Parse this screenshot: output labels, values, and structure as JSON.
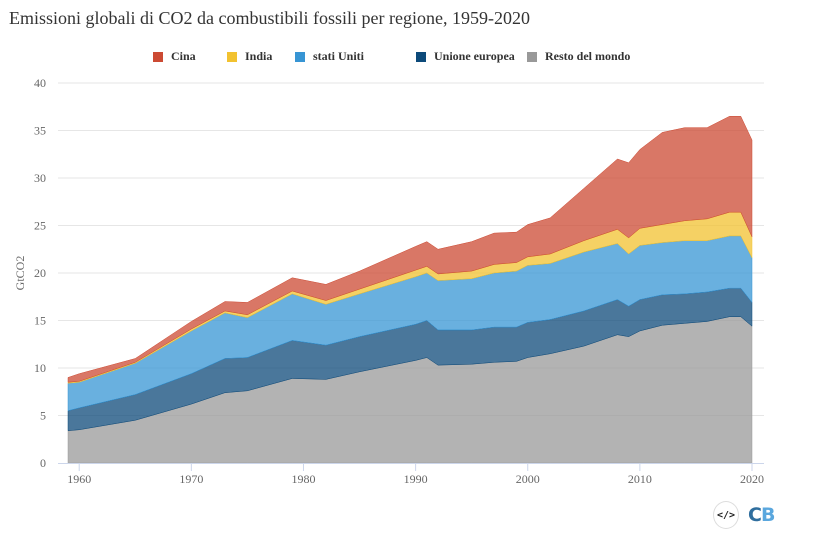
{
  "chart_data": {
    "type": "area",
    "stacked": true,
    "title": "Emissioni globali di CO2 da combustibili fossili per regione, 1959-2020",
    "xlabel": "",
    "ylabel": "GtCO2",
    "ylim": [
      0,
      40
    ],
    "yticks": [
      "0",
      "5",
      "10",
      "15",
      "20",
      "25",
      "30",
      "35",
      "40"
    ],
    "xticks": [
      "1960",
      "1970",
      "1980",
      "1990",
      "2000",
      "2010",
      "2020"
    ],
    "xlim": [
      1959,
      2020
    ],
    "grid": true,
    "legend": "top",
    "x": [
      1959,
      1960,
      1965,
      1970,
      1973,
      1975,
      1979,
      1982,
      1985,
      1990,
      1991,
      1992,
      1995,
      1997,
      1999,
      2000,
      2002,
      2005,
      2008,
      2009,
      2010,
      2012,
      2014,
      2016,
      2018,
      2019,
      2020
    ],
    "series": [
      {
        "name": "Resto del mondo",
        "color": "#999999",
        "values": [
          3.4,
          3.5,
          4.5,
          6.2,
          7.4,
          7.6,
          8.9,
          8.8,
          9.6,
          10.8,
          11.1,
          10.3,
          10.4,
          10.6,
          10.7,
          11.1,
          11.5,
          12.3,
          13.5,
          13.3,
          13.9,
          14.5,
          14.7,
          14.9,
          15.4,
          15.4,
          14.4
        ]
      },
      {
        "name": "Unione europea",
        "color": "#0d4a7a",
        "values": [
          2.1,
          2.3,
          2.7,
          3.2,
          3.6,
          3.5,
          4.0,
          3.6,
          3.7,
          3.8,
          3.9,
          3.7,
          3.6,
          3.7,
          3.6,
          3.7,
          3.6,
          3.7,
          3.7,
          3.2,
          3.3,
          3.2,
          3.1,
          3.1,
          3.0,
          3.0,
          2.5
        ]
      },
      {
        "name": "stati Uniti",
        "color": "#3795d4",
        "values": [
          2.9,
          2.7,
          3.3,
          4.5,
          4.8,
          4.2,
          4.9,
          4.3,
          4.5,
          5.0,
          5.0,
          5.2,
          5.4,
          5.7,
          5.9,
          6.0,
          5.9,
          6.2,
          5.9,
          5.5,
          5.7,
          5.5,
          5.6,
          5.4,
          5.5,
          5.5,
          4.7
        ]
      },
      {
        "name": "India",
        "color": "#f2c230",
        "values": [
          0.1,
          0.1,
          0.1,
          0.2,
          0.2,
          0.3,
          0.3,
          0.4,
          0.5,
          0.7,
          0.7,
          0.7,
          0.8,
          0.9,
          0.9,
          0.9,
          1.0,
          1.2,
          1.5,
          1.7,
          1.8,
          1.9,
          2.1,
          2.3,
          2.5,
          2.5,
          2.2
        ]
      },
      {
        "name": "Cina",
        "color": "#cc4a33",
        "values": [
          0.5,
          0.8,
          0.4,
          0.8,
          1.0,
          1.3,
          1.4,
          1.7,
          1.9,
          2.5,
          2.6,
          2.6,
          3.1,
          3.3,
          3.2,
          3.4,
          3.8,
          5.5,
          7.4,
          7.9,
          8.3,
          9.7,
          9.8,
          9.6,
          10.1,
          10.1,
          10.2
        ]
      }
    ],
    "legend_order": [
      "Cina",
      "India",
      "stati Uniti",
      "Unione europea",
      "Resto del mondo"
    ]
  },
  "legend": [
    {
      "label": "Cina",
      "color": "#cc4a33"
    },
    {
      "label": "India",
      "color": "#f2c230"
    },
    {
      "label": "stati Uniti",
      "color": "#3795d4"
    },
    {
      "label": "Unione europea",
      "color": "#0d4a7a"
    },
    {
      "label": "Resto del mondo",
      "color": "#999999"
    }
  ],
  "logo": {
    "embed_icon": "code-embed-icon",
    "text_c": "C",
    "text_b": "B"
  }
}
